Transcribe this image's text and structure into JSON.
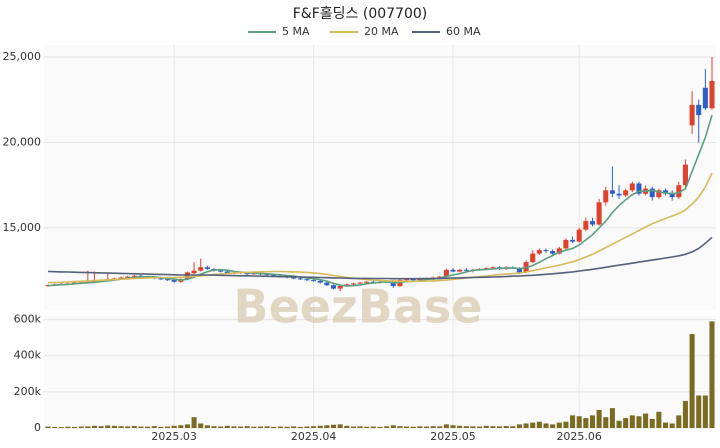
{
  "chart_data": [
    {
      "type": "candlestick",
      "title": "F&F홀딩스 (007700)",
      "watermark": "BeezBase",
      "up_color": "#e0412c",
      "down_color": "#2c5fc8",
      "open": [
        11600,
        11650,
        11700,
        11720,
        11750,
        11780,
        11820,
        11850,
        11900,
        11950,
        12000,
        12050,
        12100,
        12150,
        12200,
        12150,
        12100,
        12050,
        12000,
        11950,
        11850,
        12000,
        12350,
        12500,
        12700,
        12600,
        12500,
        12450,
        12350,
        12400,
        12350,
        12300,
        12350,
        12300,
        12250,
        12200,
        12150,
        12100,
        12050,
        12000,
        11950,
        11900,
        11800,
        11650,
        11450,
        11600,
        11700,
        11750,
        11800,
        11850,
        11800,
        11850,
        11900,
        11600,
        11950,
        12000,
        11950,
        12050,
        12000,
        12100,
        12150,
        12550,
        12450,
        12550,
        12500,
        12550,
        12600,
        12650,
        12700,
        12600,
        12700,
        12650,
        12400,
        13000,
        13500,
        13700,
        13650,
        13500,
        13800,
        14300,
        14200,
        14900,
        15400,
        15200,
        16500,
        17200,
        17000,
        16900,
        17200,
        17600,
        17000,
        17300,
        16800,
        17200,
        17000,
        16800,
        17500,
        21000,
        22200,
        23200,
        22000
      ],
      "high": [
        11700,
        11750,
        11780,
        11800,
        11850,
        11880,
        12500,
        12450,
        12000,
        12400,
        12100,
        12150,
        12200,
        12250,
        12250,
        12200,
        12150,
        12100,
        12050,
        12000,
        12050,
        12450,
        13000,
        13200,
        12800,
        12650,
        12550,
        12500,
        12450,
        12450,
        12400,
        12400,
        12400,
        12350,
        12300,
        12250,
        12200,
        12150,
        12100,
        12050,
        12000,
        11950,
        11850,
        11700,
        11650,
        11750,
        11800,
        11850,
        11900,
        11900,
        11900,
        11950,
        11950,
        12000,
        12050,
        12050,
        12100,
        12100,
        12150,
        12200,
        12600,
        12650,
        12600,
        12650,
        12600,
        12650,
        12700,
        12750,
        12750,
        12750,
        12750,
        12700,
        13100,
        13700,
        13800,
        13800,
        13750,
        13900,
        14400,
        14500,
        15000,
        15600,
        15600,
        16700,
        17400,
        18600,
        17500,
        17300,
        17700,
        17700,
        17500,
        17400,
        17300,
        17300,
        17200,
        17700,
        19000,
        23000,
        22500,
        24300,
        25000
      ],
      "low": [
        11550,
        11600,
        11650,
        11680,
        11700,
        11720,
        11800,
        11800,
        11850,
        11900,
        11950,
        12000,
        12050,
        12100,
        12100,
        12050,
        12000,
        11950,
        11900,
        11800,
        11800,
        11950,
        12300,
        12450,
        12550,
        12450,
        12400,
        12300,
        12300,
        12300,
        12250,
        12250,
        12250,
        12200,
        12150,
        12100,
        12050,
        12000,
        11950,
        11900,
        11850,
        11750,
        11600,
        11400,
        11300,
        11550,
        11650,
        11700,
        11750,
        11750,
        11750,
        11800,
        11500,
        11550,
        11900,
        11900,
        11900,
        11950,
        11950,
        12050,
        12100,
        12400,
        12400,
        12450,
        12400,
        12500,
        12550,
        12600,
        12550,
        12550,
        12600,
        12300,
        12350,
        12950,
        13400,
        13550,
        13400,
        13450,
        13750,
        14100,
        14150,
        14800,
        15100,
        15150,
        16300,
        16800,
        16700,
        16800,
        17100,
        16900,
        16900,
        16600,
        16700,
        16900,
        16600,
        16700,
        17400,
        20500,
        20000,
        21900,
        21900
      ],
      "close": [
        11650,
        11700,
        11720,
        11750,
        11800,
        11820,
        11850,
        11900,
        11950,
        12000,
        12050,
        12100,
        12150,
        12200,
        12150,
        12100,
        12050,
        12000,
        11950,
        11850,
        12000,
        12400,
        12500,
        12700,
        12600,
        12500,
        12450,
        12350,
        12400,
        12350,
        12300,
        12350,
        12300,
        12250,
        12200,
        12150,
        12100,
        12050,
        12000,
        11950,
        11900,
        11800,
        11650,
        11450,
        11600,
        11700,
        11750,
        11800,
        11850,
        11800,
        11850,
        11900,
        11600,
        11950,
        12000,
        11950,
        12050,
        12000,
        12100,
        12150,
        12550,
        12450,
        12550,
        12500,
        12550,
        12600,
        12650,
        12700,
        12600,
        12700,
        12650,
        12400,
        13000,
        13500,
        13700,
        13650,
        13500,
        13800,
        14300,
        14200,
        14900,
        15400,
        15200,
        16500,
        17200,
        17000,
        16900,
        17200,
        17600,
        17000,
        17300,
        16800,
        17200,
        17000,
        16800,
        17500,
        18700,
        22200,
        21600,
        22000,
        23600
      ],
      "series": [
        {
          "name": "5 MA",
          "color": "#5b9e80",
          "values": [
            11620,
            11650,
            11680,
            11700,
            11730,
            11760,
            11790,
            11820,
            11860,
            11900,
            11950,
            12000,
            12050,
            12100,
            12130,
            12150,
            12140,
            12100,
            12050,
            12000,
            11950,
            12000,
            12120,
            12300,
            12440,
            12540,
            12560,
            12530,
            12460,
            12410,
            12380,
            12360,
            12340,
            12320,
            12290,
            12260,
            12220,
            12180,
            12130,
            12080,
            12030,
            11970,
            11890,
            11760,
            11650,
            11610,
            11620,
            11660,
            11740,
            11780,
            11820,
            11840,
            11790,
            11800,
            11860,
            11880,
            11900,
            11990,
            12020,
            12050,
            12170,
            12250,
            12330,
            12420,
            12520,
            12550,
            12570,
            12600,
            12630,
            12650,
            12660,
            12620,
            12670,
            12800,
            12990,
            13200,
            13390,
            13580,
            13700,
            13800,
            14000,
            14300,
            14600,
            15000,
            15400,
            15900,
            16300,
            16650,
            16950,
            17150,
            17150,
            17200,
            17100,
            17050,
            17000,
            17050,
            17300,
            18300,
            19300,
            20300,
            21600
          ]
        },
        {
          "name": "20 MA",
          "color": "#d6ba5c",
          "values": [
            11800,
            11810,
            11820,
            11840,
            11860,
            11880,
            11900,
            11920,
            11940,
            11960,
            11980,
            12000,
            12020,
            12040,
            12060,
            12080,
            12090,
            12100,
            12100,
            12100,
            12110,
            12130,
            12160,
            12200,
            12240,
            12270,
            12300,
            12330,
            12360,
            12380,
            12400,
            12420,
            12430,
            12440,
            12450,
            12450,
            12440,
            12430,
            12420,
            12400,
            12370,
            12330,
            12280,
            12220,
            12160,
            12100,
            12060,
            12020,
            11980,
            11950,
            11930,
            11910,
            11890,
            11880,
            11870,
            11870,
            11880,
            11890,
            11900,
            11920,
            11950,
            11990,
            12030,
            12070,
            12110,
            12150,
            12190,
            12230,
            12270,
            12300,
            12330,
            12360,
            12420,
            12500,
            12580,
            12660,
            12740,
            12820,
            12920,
            13020,
            13150,
            13300,
            13450,
            13650,
            13850,
            14050,
            14250,
            14450,
            14650,
            14850,
            15050,
            15250,
            15400,
            15550,
            15700,
            15850,
            16050,
            16400,
            16800,
            17400,
            18200
          ]
        },
        {
          "name": "60 MA",
          "color": "#56607a",
          "values": [
            12450,
            12440,
            12430,
            12420,
            12410,
            12400,
            12390,
            12380,
            12370,
            12360,
            12350,
            12340,
            12330,
            12320,
            12310,
            12300,
            12290,
            12280,
            12270,
            12260,
            12250,
            12250,
            12250,
            12250,
            12250,
            12240,
            12230,
            12220,
            12210,
            12200,
            12200,
            12190,
            12180,
            12170,
            12160,
            12150,
            12150,
            12140,
            12130,
            12120,
            12110,
            12100,
            12090,
            12080,
            12070,
            12060,
            12050,
            12050,
            12050,
            12040,
            12040,
            12040,
            12030,
            12030,
            12030,
            12030,
            12030,
            12040,
            12040,
            12050,
            12060,
            12070,
            12080,
            12090,
            12100,
            12110,
            12120,
            12130,
            12140,
            12160,
            12180,
            12190,
            12210,
            12230,
            12260,
            12290,
            12320,
            12350,
            12390,
            12430,
            12480,
            12530,
            12580,
            12640,
            12700,
            12760,
            12820,
            12880,
            12940,
            13000,
            13060,
            13120,
            13180,
            13240,
            13300,
            13370,
            13460,
            13600,
            13800,
            14100,
            14450
          ]
        }
      ],
      "ylim": [
        10200,
        25700
      ],
      "yticks": [
        {
          "value": 15000,
          "label": "15,000"
        },
        {
          "value": 20000,
          "label": "20,000"
        },
        {
          "value": 25000,
          "label": "25,000"
        }
      ],
      "grid": true
    },
    {
      "type": "bar",
      "color": "#7a6a22",
      "categories": [
        null,
        null,
        null,
        null,
        null,
        null,
        null,
        null,
        null,
        null,
        null,
        null,
        null,
        null,
        null,
        null,
        null,
        null,
        null,
        "2025.03",
        null,
        null,
        null,
        null,
        null,
        null,
        null,
        null,
        null,
        null,
        null,
        null,
        null,
        null,
        null,
        null,
        null,
        null,
        null,
        null,
        "2025.04",
        null,
        null,
        null,
        null,
        null,
        null,
        null,
        null,
        null,
        null,
        null,
        null,
        null,
        null,
        null,
        null,
        null,
        null,
        null,
        null,
        "2025.05",
        null,
        null,
        null,
        null,
        null,
        null,
        null,
        null,
        null,
        null,
        null,
        null,
        null,
        null,
        null,
        null,
        null,
        null,
        "2025.06",
        null,
        null,
        null,
        null,
        null,
        null,
        null,
        null,
        null,
        null,
        null,
        null,
        null,
        null,
        null,
        null,
        null,
        null,
        null,
        null
      ],
      "values": [
        8000,
        6000,
        5000,
        7000,
        6000,
        8000,
        9000,
        12000,
        10000,
        14000,
        12000,
        10000,
        9000,
        11000,
        8000,
        7000,
        10000,
        6000,
        8000,
        12000,
        15000,
        20000,
        60000,
        25000,
        15000,
        10000,
        8000,
        12000,
        9000,
        8000,
        10000,
        7000,
        8000,
        9000,
        6000,
        8000,
        7000,
        9000,
        6000,
        8000,
        10000,
        12000,
        15000,
        18000,
        20000,
        12000,
        8000,
        9000,
        7000,
        8000,
        6000,
        9000,
        15000,
        10000,
        8000,
        7000,
        9000,
        8000,
        10000,
        9000,
        20000,
        15000,
        12000,
        10000,
        9000,
        8000,
        12000,
        10000,
        9000,
        11000,
        10000,
        20000,
        25000,
        30000,
        35000,
        25000,
        20000,
        30000,
        35000,
        70000,
        65000,
        55000,
        70000,
        100000,
        60000,
        110000,
        40000,
        55000,
        70000,
        65000,
        80000,
        50000,
        90000,
        30000,
        25000,
        70000,
        150000,
        520000,
        180000,
        180000,
        590000
      ],
      "ylim": [
        0,
        620000
      ],
      "yticks": [
        0,
        {
          "value": 200000,
          "label": "200k"
        },
        {
          "value": 400000,
          "label": "400k"
        },
        {
          "value": 600000,
          "label": "600k"
        }
      ],
      "grid": true
    }
  ]
}
